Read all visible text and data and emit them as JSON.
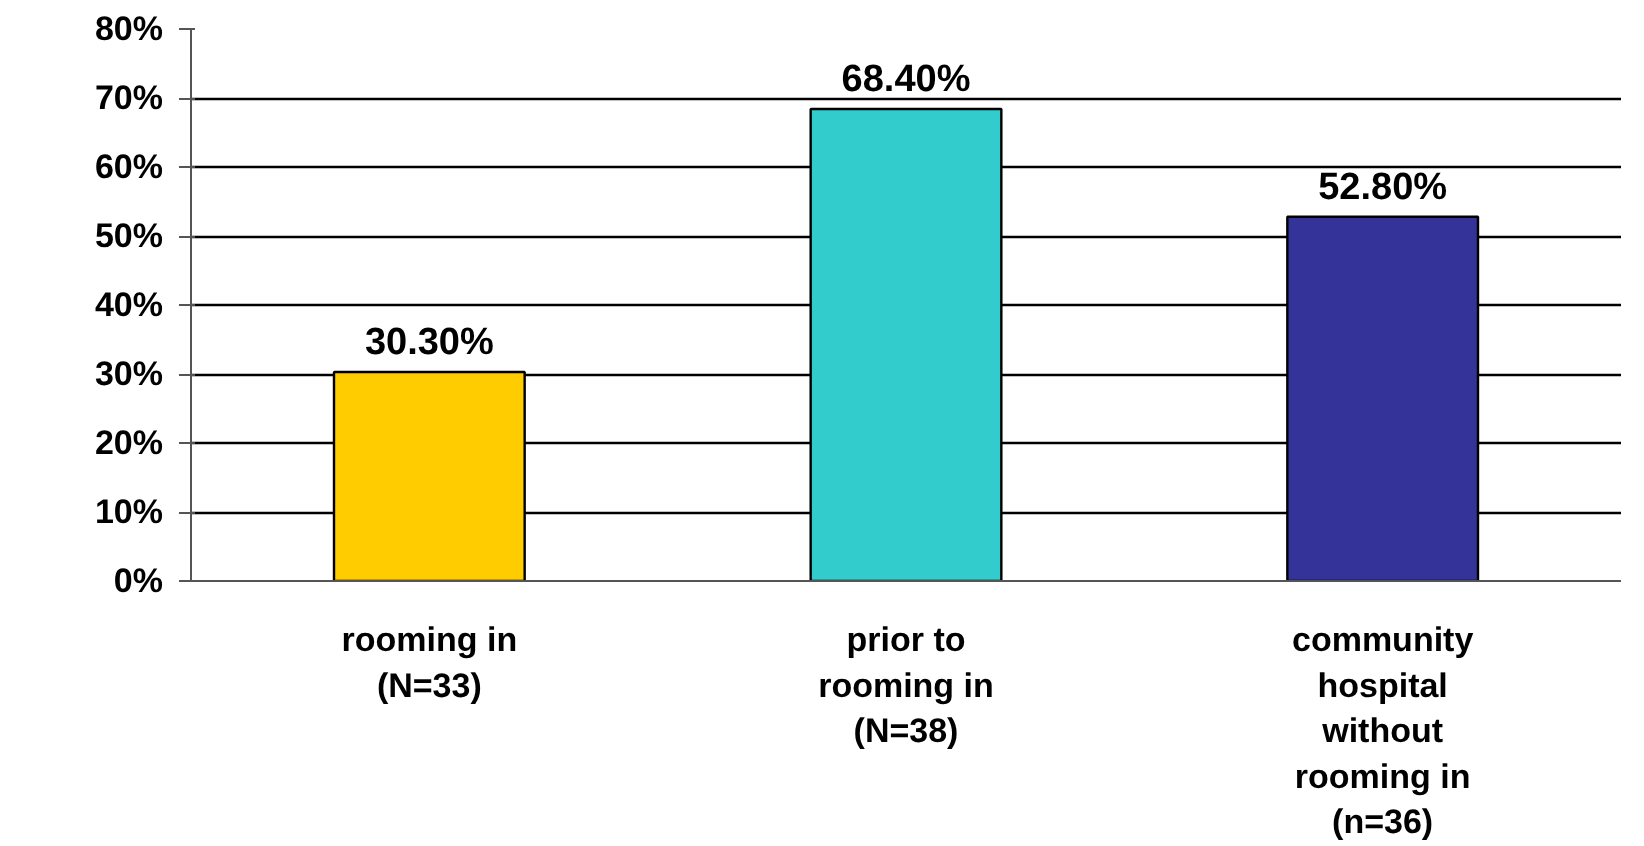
{
  "chart_data": {
    "type": "bar",
    "categories": [
      "rooming in\n(N=33)",
      "prior to\nrooming in\n(N=38)",
      "community\nhospital\nwithout\nrooming in\n(n=36)"
    ],
    "values": [
      30.3,
      68.4,
      52.8
    ],
    "colors": [
      "#ffcc00",
      "#33cccc",
      "#333399"
    ],
    "value_labels": [
      "30.30%",
      "68.40%",
      "52.80%"
    ],
    "ylim": [
      0,
      80
    ],
    "yticks": [
      {
        "value": 0,
        "label": "0%"
      },
      {
        "value": 10,
        "label": "10%"
      },
      {
        "value": 20,
        "label": "20%"
      },
      {
        "value": 30,
        "label": "30%"
      },
      {
        "value": 40,
        "label": "40%"
      },
      {
        "value": 50,
        "label": "50%"
      },
      {
        "value": 60,
        "label": "60%"
      },
      {
        "value": 70,
        "label": "70%"
      },
      {
        "value": 80,
        "label": "80%"
      }
    ],
    "grid": "y"
  }
}
